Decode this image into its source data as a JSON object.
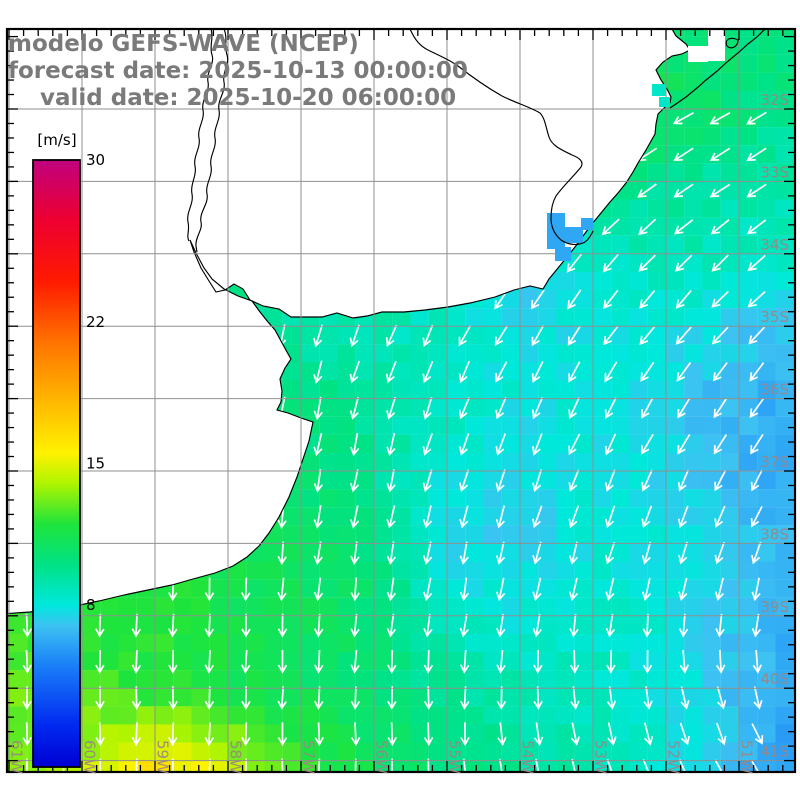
{
  "header": {
    "title_line1": "modelo GEFS-WAVE (NCEP)",
    "title_line2": "forecast date: 2025-10-13 00:00:00",
    "title_line3": "valid date: 2025-10-20 06:00:00"
  },
  "colorbar": {
    "unit": "[m/s]",
    "tick_values": [
      30,
      22,
      15,
      8
    ],
    "min": 0,
    "max": 30,
    "stops": [
      [
        30,
        "#C0007E"
      ],
      [
        27,
        "#EE0030"
      ],
      [
        24,
        "#FF1A00"
      ],
      [
        21,
        "#FF7300"
      ],
      [
        18,
        "#FFB900"
      ],
      [
        15.5,
        "#FFF200"
      ],
      [
        14,
        "#AFF400"
      ],
      [
        12,
        "#1EE43C"
      ],
      [
        10,
        "#00E286"
      ],
      [
        8,
        "#00E8DC"
      ],
      [
        7,
        "#3DC2F2"
      ],
      [
        5,
        "#1A7FF8"
      ],
      [
        2,
        "#0028F0"
      ],
      [
        0,
        "#0000D2"
      ]
    ]
  },
  "axes": {
    "lat_labels": [
      "32S",
      "33S",
      "34S",
      "35S",
      "36S",
      "37S",
      "38S",
      "39S",
      "40S",
      "41S"
    ],
    "lon_labels": [
      "61W",
      "60W",
      "59W",
      "58W",
      "57W",
      "56W",
      "55W",
      "54W",
      "53W",
      "52W",
      "51W"
    ],
    "gridline_color": "#8f8f8f",
    "label_color": "#9d8585"
  },
  "chart_data": {
    "type": "heatmap",
    "field": "wind speed with wind direction arrows",
    "units": "m/s",
    "lat_south": [
      31,
      32,
      33,
      34,
      35,
      36,
      37,
      38,
      39,
      40,
      41,
      42
    ],
    "lon_west": [
      61,
      60,
      59,
      58,
      57,
      56,
      55,
      54,
      53,
      52,
      51,
      50
    ],
    "cell_size_deg": 0.25,
    "arrow_spacing_deg": 0.5,
    "speed_ms": [
      [
        12,
        12,
        12,
        12,
        12,
        12,
        12,
        12,
        11.8,
        10.8,
        10.2,
        10.5
      ],
      [
        12,
        12,
        12,
        12,
        12,
        12,
        12,
        11.8,
        11.5,
        11,
        10.2,
        9.6
      ],
      [
        11.5,
        11.5,
        11.5,
        11.5,
        11.5,
        11.2,
        11,
        10.2,
        10,
        9.6,
        9.2,
        9
      ],
      [
        10.5,
        10.5,
        10.5,
        10.3,
        10.2,
        10,
        9,
        7,
        8.6,
        9,
        8.6,
        8.4
      ],
      [
        11,
        10.8,
        10.5,
        9.2,
        9.2,
        9,
        8.4,
        7.6,
        8,
        8,
        7.4,
        6.6
      ],
      [
        11.5,
        11,
        11,
        10.5,
        10,
        9.4,
        8.6,
        8,
        8,
        7.4,
        6.6,
        6.2
      ],
      [
        12,
        12,
        11.5,
        11,
        10.5,
        9.5,
        8,
        7.5,
        8,
        7.5,
        6.6,
        6.2
      ],
      [
        12,
        12,
        12,
        11.5,
        11,
        10,
        7.6,
        7.2,
        8,
        8,
        7,
        6.5
      ],
      [
        12.5,
        12,
        12,
        11.5,
        11,
        10.5,
        8.6,
        8,
        8.5,
        8,
        7,
        6.2
      ],
      [
        13,
        12.5,
        12,
        11.6,
        11,
        10.5,
        9.5,
        9,
        8.6,
        8,
        7,
        5.9
      ],
      [
        13,
        14,
        15.8,
        14.2,
        12.4,
        11,
        10,
        9.5,
        9,
        8,
        6.6,
        5.6
      ],
      [
        14,
        16,
        18.5,
        16.5,
        13,
        11.5,
        10.5,
        9.6,
        9,
        8,
        6.6,
        5.6
      ]
    ],
    "direction_toward_deg": [
      [
        200,
        202,
        205,
        208,
        212,
        218,
        224,
        230,
        238,
        242,
        242,
        242
      ],
      [
        196,
        200,
        203,
        206,
        210,
        216,
        222,
        228,
        236,
        242,
        242,
        242
      ],
      [
        192,
        196,
        199,
        202,
        206,
        211,
        217,
        223,
        229,
        234,
        236,
        236
      ],
      [
        188,
        191,
        194,
        197,
        201,
        206,
        211,
        217,
        222,
        227,
        229,
        230
      ],
      [
        185,
        187,
        190,
        193,
        196,
        201,
        206,
        211,
        216,
        219,
        222,
        224
      ],
      [
        182,
        184,
        187,
        189,
        192,
        196,
        201,
        205,
        209,
        212,
        215,
        218
      ],
      [
        181,
        182,
        184,
        186,
        189,
        192,
        196,
        200,
        203,
        206,
        208,
        211
      ],
      [
        180,
        181,
        182,
        184,
        186,
        189,
        192,
        195,
        196,
        198,
        201,
        203
      ],
      [
        180,
        180,
        181,
        182,
        184,
        186,
        187,
        189,
        188,
        187,
        188,
        190
      ],
      [
        180,
        180,
        180,
        181,
        181,
        182,
        181,
        180,
        176,
        172,
        168,
        163
      ],
      [
        180,
        180,
        180,
        180,
        180,
        179,
        176,
        171,
        166,
        157,
        151,
        146
      ],
      [
        180,
        180,
        180,
        180,
        179,
        176,
        172,
        167,
        161,
        152,
        146,
        141
      ]
    ]
  }
}
